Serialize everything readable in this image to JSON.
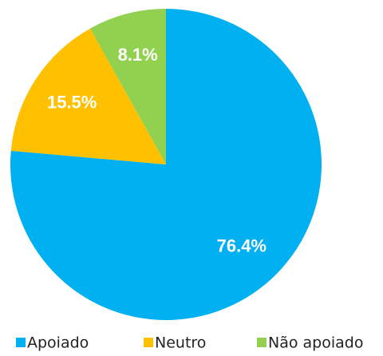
{
  "chart_data": {
    "type": "pie",
    "categories": [
      "Apoiado",
      "Neutro",
      "Não apoiado"
    ],
    "values": [
      76.4,
      15.5,
      8.1
    ],
    "value_labels": [
      "76.4%",
      "15.5%",
      "8.1%"
    ],
    "colors": [
      "#00b0f0",
      "#ffc000",
      "#92d050"
    ],
    "legend": "bottom"
  }
}
